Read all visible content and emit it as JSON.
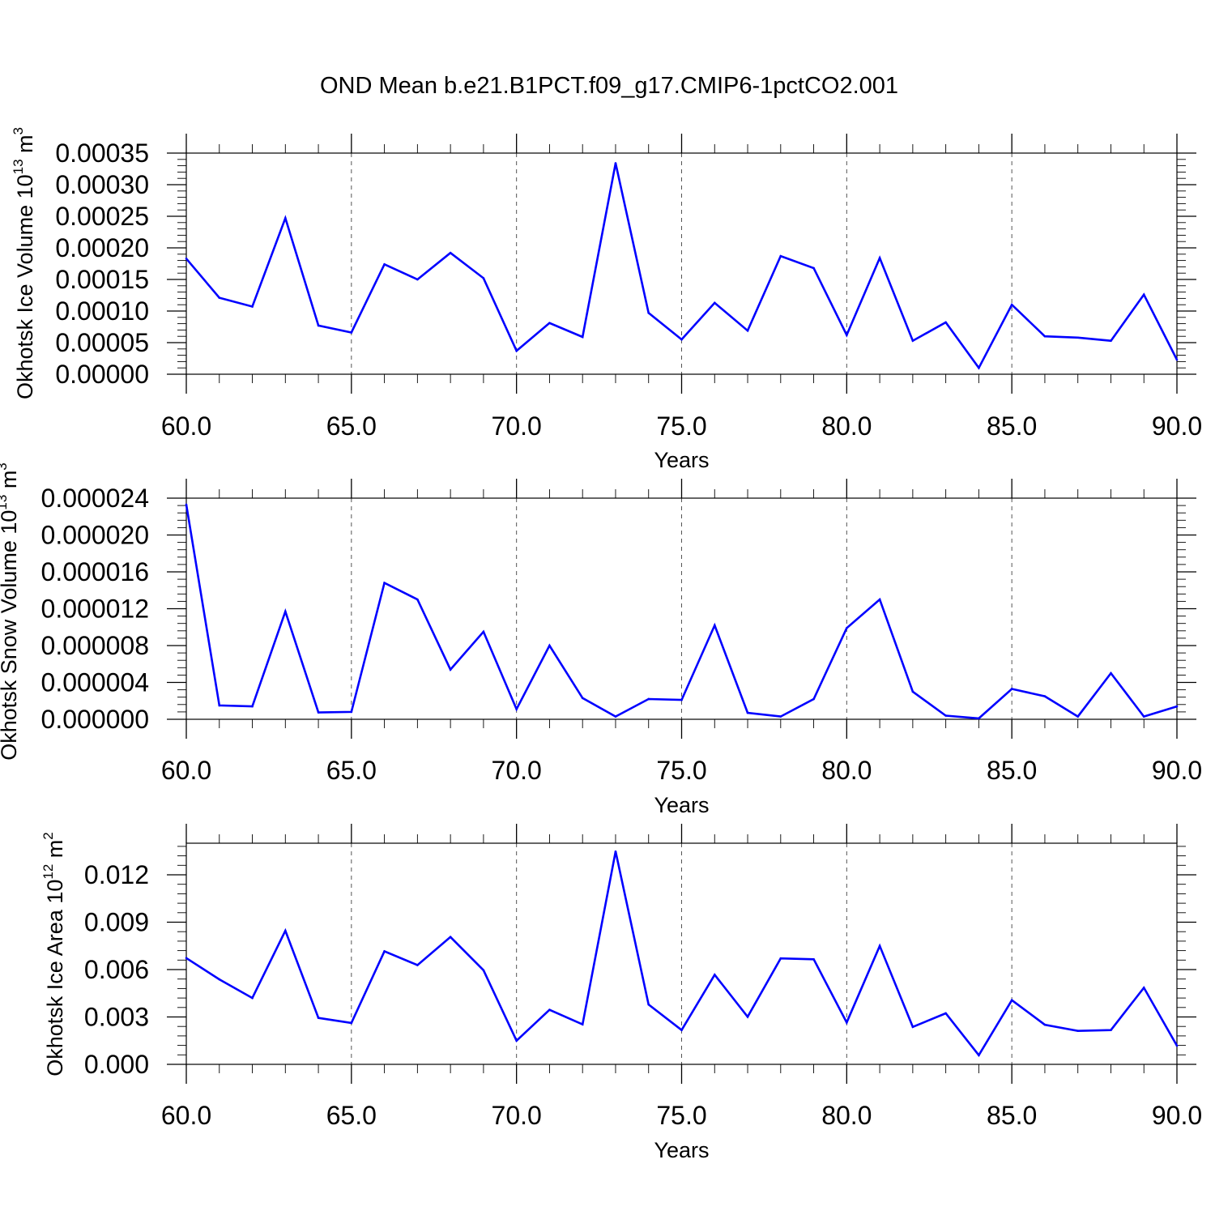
{
  "figure": {
    "title": "OND Mean b.e21.B1PCT.f09_g17.CMIP6-1pctCO2.001"
  },
  "chart_data": [
    {
      "type": "line",
      "xlabel": "Years",
      "ylabel": {
        "main": "Okhotsk Ice Volume 10",
        "exp": "13",
        "unit": " m",
        "unit_exp": "3"
      },
      "xlim": [
        60,
        90
      ],
      "ylim": [
        0,
        0.00035
      ],
      "xticks": [
        60,
        65,
        70,
        75,
        80,
        85,
        90
      ],
      "xtick_labels": [
        "60.0",
        "65.0",
        "70.0",
        "75.0",
        "80.0",
        "85.0",
        "90.0"
      ],
      "yticks": [
        0,
        5e-05,
        0.0001,
        0.00015,
        0.0002,
        0.00025,
        0.0003,
        0.00035
      ],
      "ytick_labels": [
        "0.00000",
        "0.00005",
        "0.00010",
        "0.00015",
        "0.00020",
        "0.00025",
        "0.00030",
        "0.00035"
      ],
      "grid": "vertical dashed at major x ticks",
      "line_color": "#0000ff",
      "x": [
        60,
        61,
        62,
        63,
        64,
        65,
        66,
        67,
        68,
        69,
        70,
        71,
        72,
        73,
        74,
        75,
        76,
        77,
        78,
        79,
        80,
        81,
        82,
        83,
        84,
        85,
        86,
        87,
        88,
        89,
        90
      ],
      "values": [
        0.000183,
        0.000121,
        0.000107,
        0.000247,
        7.7e-05,
        6.6e-05,
        0.000174,
        0.00015,
        0.000192,
        0.000152,
        3.7e-05,
        8.1e-05,
        5.9e-05,
        0.000334,
        9.7e-05,
        5.5e-05,
        0.000113,
        6.9e-05,
        0.000187,
        0.000168,
        6.2e-05,
        0.000184,
        5.3e-05,
        8.2e-05,
        1e-05,
        0.00011,
        6e-05,
        5.8e-05,
        5.3e-05,
        0.000126,
        2.3e-05
      ]
    },
    {
      "type": "line",
      "xlabel": "Years",
      "ylabel": {
        "main": "Okhotsk Snow Volume 10",
        "exp": "13",
        "unit": " m",
        "unit_exp": "3"
      },
      "xlim": [
        60,
        90
      ],
      "ylim": [
        0,
        2.4e-05
      ],
      "xticks": [
        60,
        65,
        70,
        75,
        80,
        85,
        90
      ],
      "xtick_labels": [
        "60.0",
        "65.0",
        "70.0",
        "75.0",
        "80.0",
        "85.0",
        "90.0"
      ],
      "yticks": [
        0,
        4e-06,
        8e-06,
        1.2e-05,
        1.6e-05,
        2e-05,
        2.4e-05
      ],
      "ytick_labels": [
        "0.000000",
        "0.000004",
        "0.000008",
        "0.000012",
        "0.000016",
        "0.000020",
        "0.000024"
      ],
      "grid": "vertical dashed at major x ticks",
      "line_color": "#0000ff",
      "x": [
        60,
        61,
        62,
        63,
        64,
        65,
        66,
        67,
        68,
        69,
        70,
        71,
        72,
        73,
        74,
        75,
        76,
        77,
        78,
        79,
        80,
        81,
        82,
        83,
        84,
        85,
        86,
        87,
        88,
        89,
        90
      ],
      "values": [
        2.33e-05,
        1.5e-06,
        1.4e-06,
        1.17e-05,
        7.5e-07,
        8e-07,
        1.48e-05,
        1.3e-05,
        5.4e-06,
        9.5e-06,
        1.1e-06,
        8e-06,
        2.3e-06,
        3e-07,
        2.2e-06,
        2.1e-06,
        1.02e-05,
        7e-07,
        3e-07,
        2.2e-06,
        9.9e-06,
        1.3e-05,
        3e-06,
        4e-07,
        1e-07,
        3.3e-06,
        2.5e-06,
        3e-07,
        5e-06,
        3e-07,
        1.4e-06
      ]
    },
    {
      "type": "line",
      "xlabel": "Years",
      "ylabel": {
        "main": "Okhotsk Ice Area 10",
        "exp": "12",
        "unit": " m",
        "unit_exp": "2"
      },
      "xlim": [
        60,
        90
      ],
      "ylim": [
        0,
        0.014
      ],
      "xticks": [
        60,
        65,
        70,
        75,
        80,
        85,
        90
      ],
      "xtick_labels": [
        "60.0",
        "65.0",
        "70.0",
        "75.0",
        "80.0",
        "85.0",
        "90.0"
      ],
      "yticks": [
        0,
        0.003,
        0.006,
        0.009,
        0.012
      ],
      "ytick_labels": [
        "0.000",
        "0.003",
        "0.006",
        "0.009",
        "0.012"
      ],
      "grid": "vertical dashed at major x ticks",
      "line_color": "#0000ff",
      "x": [
        60,
        61,
        62,
        63,
        64,
        65,
        66,
        67,
        68,
        69,
        70,
        71,
        72,
        73,
        74,
        75,
        76,
        77,
        78,
        79,
        80,
        81,
        82,
        83,
        84,
        85,
        86,
        87,
        88,
        89,
        90
      ],
      "values": [
        0.00673,
        0.00538,
        0.0042,
        0.00846,
        0.00294,
        0.00262,
        0.00716,
        0.00628,
        0.00806,
        0.00596,
        0.0015,
        0.00345,
        0.00253,
        0.01348,
        0.00379,
        0.00217,
        0.00567,
        0.00301,
        0.00671,
        0.00665,
        0.00265,
        0.0075,
        0.00237,
        0.00323,
        0.00058,
        0.00406,
        0.00251,
        0.00212,
        0.00217,
        0.00485,
        0.00118
      ]
    }
  ]
}
